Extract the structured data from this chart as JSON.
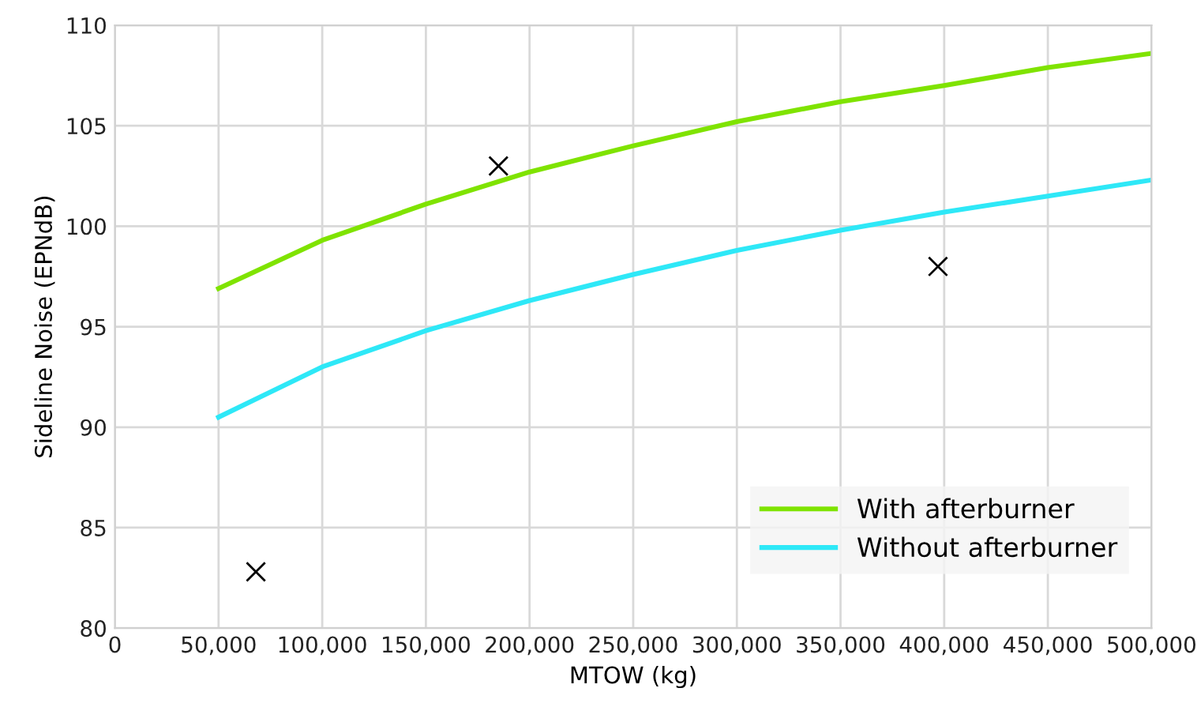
{
  "chart_data": {
    "type": "line",
    "xlabel": "MTOW (kg)",
    "ylabel": "Sideline Noise (EPNdB)",
    "xlim": [
      0,
      500000
    ],
    "xticks": [
      {
        "value": 0,
        "label": "0"
      },
      {
        "value": 50000,
        "label": "50,000"
      },
      {
        "value": 100000,
        "label": "100,000"
      },
      {
        "value": 150000,
        "label": "150,000"
      },
      {
        "value": 200000,
        "label": "200,000"
      },
      {
        "value": 250000,
        "label": "250,000"
      },
      {
        "value": 300000,
        "label": "300,000"
      },
      {
        "value": 350000,
        "label": "350,000"
      },
      {
        "value": 400000,
        "label": "400,000"
      },
      {
        "value": 450000,
        "label": "450,000"
      },
      {
        "value": 500000,
        "label": "500,000"
      }
    ],
    "ylim": [
      80,
      110
    ],
    "yticks": [
      80,
      85,
      90,
      95,
      100,
      105,
      110
    ],
    "x": [
      50000,
      100000,
      150000,
      200000,
      250000,
      300000,
      350000,
      400000,
      450000,
      500000
    ],
    "series": [
      {
        "name": "With afterburner",
        "color": "#7fe300",
        "marker": "none",
        "values": [
          96.9,
          99.3,
          101.1,
          102.7,
          104.0,
          105.2,
          106.2,
          107.0,
          107.9,
          108.6
        ]
      },
      {
        "name": "Without afterburner",
        "color": "#2ee8f7",
        "marker": "none",
        "values": [
          90.5,
          93.0,
          94.8,
          96.3,
          97.6,
          98.8,
          99.8,
          100.7,
          101.5,
          102.3
        ]
      },
      {
        "type": "scatter",
        "color": "#000000",
        "marker": "cross",
        "x": [
          185000,
          397000,
          68000
        ],
        "values": [
          103.0,
          98.0,
          82.8
        ]
      }
    ],
    "grid": true,
    "legend": "bottom right",
    "line_style": "solid"
  }
}
